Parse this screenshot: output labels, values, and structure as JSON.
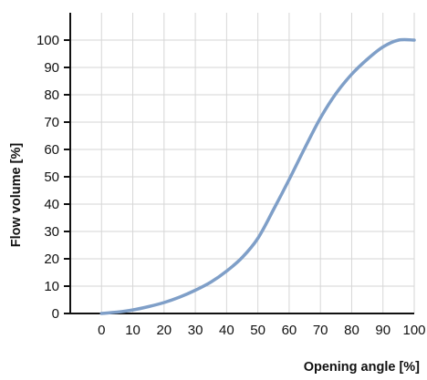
{
  "colors": {
    "curve": "#7f9fc8",
    "grid": "#d6d6d6",
    "axis": "#111111",
    "text": "#111111"
  },
  "chart_data": {
    "type": "line",
    "xlabel": "Opening angle [%]",
    "ylabel": "Flow volume [%]",
    "xlim": [
      -10,
      100
    ],
    "ylim": [
      0,
      110
    ],
    "x_ticks": [
      0,
      10,
      20,
      30,
      40,
      50,
      60,
      70,
      80,
      90,
      100
    ],
    "y_ticks": [
      0,
      10,
      20,
      30,
      40,
      50,
      60,
      70,
      80,
      90,
      100
    ],
    "grid": true,
    "series": [
      {
        "x": [
          0,
          5,
          10,
          15,
          20,
          25,
          30,
          35,
          40,
          45,
          50,
          55,
          60,
          65,
          70,
          75,
          80,
          85,
          90,
          95,
          100
        ],
        "y": [
          0,
          0.5,
          1.3,
          2.5,
          4,
          6,
          8.5,
          11.5,
          15.5,
          20.5,
          27.5,
          38,
          49,
          60.5,
          71.5,
          80.5,
          87.5,
          93,
          97.5,
          100,
          100
        ]
      }
    ]
  }
}
